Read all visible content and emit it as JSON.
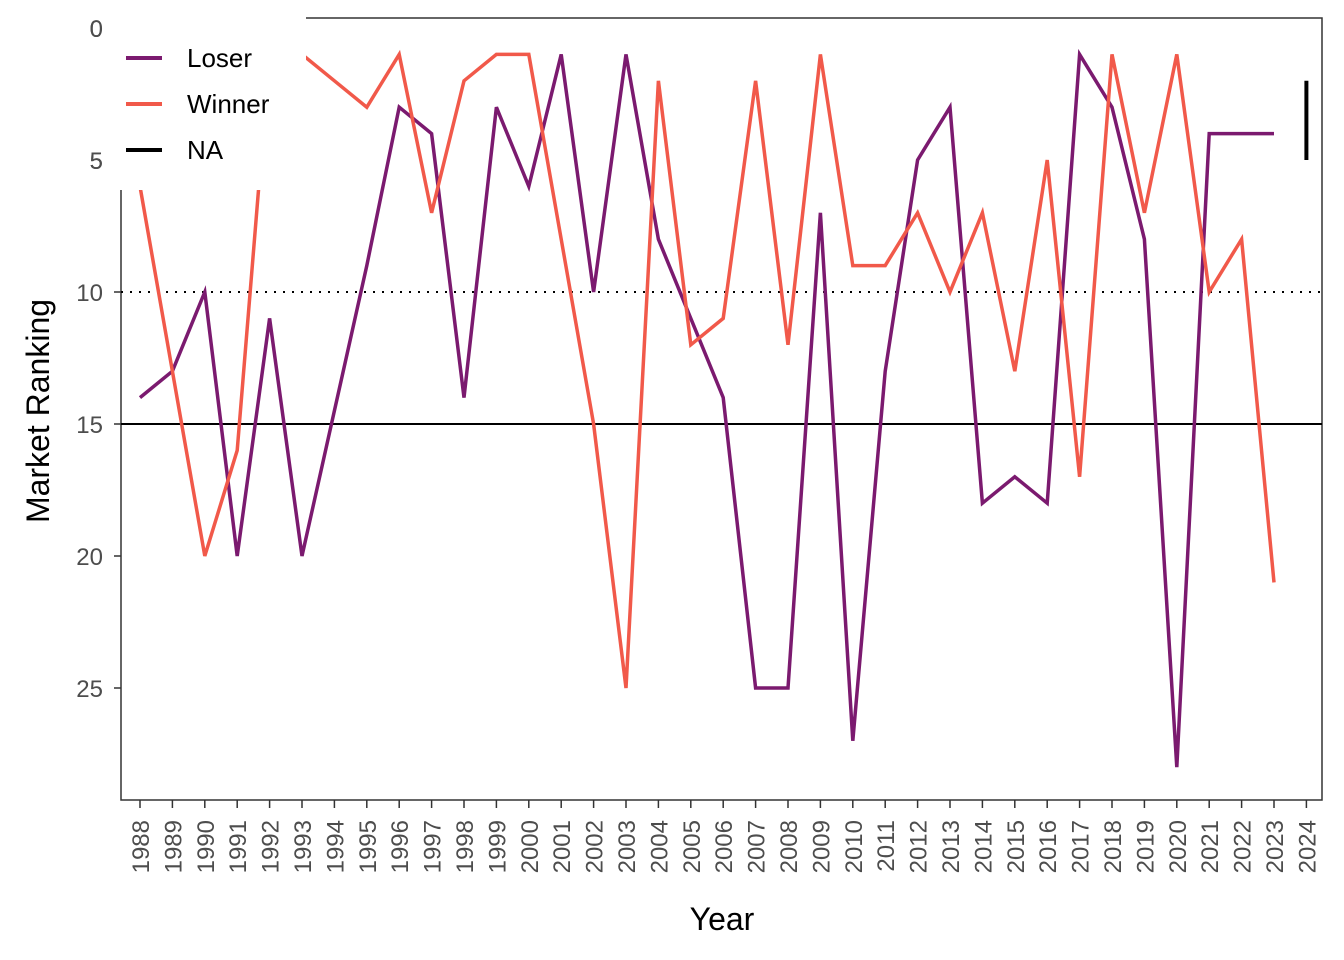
{
  "chart_data": {
    "type": "line",
    "title": "",
    "xlabel": "Year",
    "ylabel": "Market Ranking",
    "y_reversed": true,
    "ylim": [
      0,
      29
    ],
    "y_ticks": [
      0,
      5,
      10,
      15,
      20,
      25
    ],
    "x": [
      1988,
      1989,
      1990,
      1991,
      1992,
      1993,
      1994,
      1995,
      1996,
      1997,
      1998,
      1999,
      2000,
      2001,
      2002,
      2003,
      2004,
      2005,
      2006,
      2007,
      2008,
      2009,
      2010,
      2011,
      2012,
      2013,
      2014,
      2015,
      2016,
      2017,
      2018,
      2019,
      2020,
      2021,
      2022,
      2023,
      2024
    ],
    "series": [
      {
        "name": "Loser",
        "color": "#7b1a6f",
        "values": [
          14,
          13,
          10,
          20,
          11,
          20,
          14.5,
          9,
          3,
          4,
          14,
          3,
          6,
          1,
          10,
          1,
          8,
          11,
          14,
          25,
          25,
          7,
          27,
          13,
          5,
          3,
          18,
          17,
          18,
          1,
          3,
          8,
          28,
          4,
          4,
          4,
          null
        ]
      },
      {
        "name": "Winner",
        "color": "#f1594a",
        "values": [
          6,
          13,
          20,
          16,
          1,
          1,
          2,
          3,
          1,
          7,
          2,
          1,
          1,
          8,
          15,
          25,
          2,
          12,
          11,
          2,
          12,
          1,
          9,
          9,
          7,
          10,
          7,
          13,
          5,
          17,
          1,
          7,
          1,
          10,
          8,
          21,
          null
        ]
      },
      {
        "name": "NA",
        "color": "#000000",
        "values": [
          null,
          null,
          null,
          null,
          null,
          null,
          null,
          null,
          null,
          null,
          null,
          null,
          null,
          null,
          null,
          null,
          null,
          null,
          null,
          null,
          null,
          null,
          null,
          null,
          null,
          null,
          null,
          null,
          null,
          null,
          null,
          null,
          null,
          null,
          null,
          null,
          [
            2,
            5
          ]
        ]
      }
    ],
    "reference_lines": [
      {
        "y": 10,
        "style": "dotted",
        "color": "#000000"
      },
      {
        "y": 15,
        "style": "solid",
        "color": "#000000"
      }
    ],
    "legend": {
      "placement": "top-left",
      "entries": [
        {
          "label": "Loser",
          "color": "#7b1a6f"
        },
        {
          "label": "Winner",
          "color": "#f1594a"
        },
        {
          "label": "NA",
          "color": "#000000"
        }
      ]
    },
    "grid": false
  }
}
